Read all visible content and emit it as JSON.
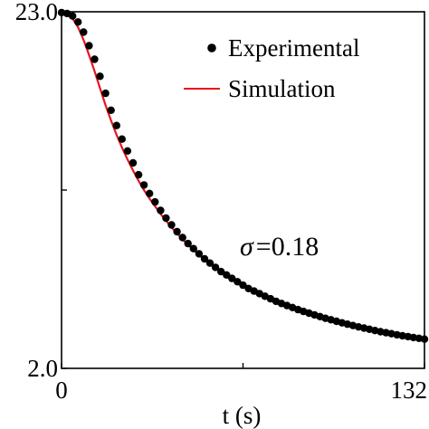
{
  "chart_data": {
    "type": "scatter",
    "title": "",
    "xlabel": "t (s)",
    "ylabel": "",
    "xlim": [
      0,
      132
    ],
    "ylim": [
      2.0,
      23.0
    ],
    "x_ticks": [
      {
        "value": 0,
        "label": "0"
      },
      {
        "value": 66,
        "label": ""
      },
      {
        "value": 132,
        "label": "132"
      }
    ],
    "y_ticks": [
      {
        "value": 2.0,
        "label": "2.0"
      },
      {
        "value": 12.5,
        "label": ""
      },
      {
        "value": 23.0,
        "label": "23.0"
      }
    ],
    "grid": false,
    "legend": {
      "position": "top-right",
      "entries": [
        {
          "label": "Experimental",
          "marker": "dot",
          "color": "#000000"
        },
        {
          "label": "Simulation",
          "marker": "line",
          "color": "#e8141c"
        }
      ]
    },
    "annotation": {
      "symbol": "σ",
      "text": "=0.18"
    },
    "series": [
      {
        "name": "Experimental",
        "kind": "points",
        "color": "#000000",
        "x": [
          0,
          2,
          4,
          6,
          8,
          10,
          12,
          14,
          16,
          18,
          20,
          22,
          24,
          26,
          28,
          30,
          32,
          34,
          36,
          38,
          40,
          42,
          44,
          46,
          48,
          50,
          52,
          54,
          56,
          58,
          60,
          62,
          64,
          66,
          68,
          70,
          72,
          74,
          76,
          78,
          80,
          82,
          84,
          86,
          88,
          90,
          92,
          94,
          96,
          98,
          100,
          102,
          104,
          106,
          108,
          110,
          112,
          114,
          116,
          118,
          120,
          122,
          124,
          126,
          128,
          130,
          132
        ],
        "y": [
          22.95,
          22.9,
          22.75,
          22.4,
          21.8,
          21.0,
          20.2,
          19.2,
          18.2,
          17.2,
          16.3,
          15.5,
          14.8,
          14.1,
          13.4,
          12.8,
          12.3,
          11.8,
          11.3,
          10.85,
          10.45,
          10.05,
          9.7,
          9.35,
          9.05,
          8.75,
          8.45,
          8.2,
          7.95,
          7.7,
          7.5,
          7.3,
          7.1,
          6.9,
          6.7,
          6.55,
          6.4,
          6.25,
          6.1,
          5.95,
          5.82,
          5.7,
          5.58,
          5.46,
          5.35,
          5.25,
          5.15,
          5.05,
          4.95,
          4.86,
          4.77,
          4.68,
          4.6,
          4.52,
          4.44,
          4.37,
          4.3,
          4.23,
          4.16,
          4.1,
          4.04,
          3.98,
          3.92,
          3.87,
          3.82,
          3.77,
          3.72
        ]
      },
      {
        "name": "Simulation",
        "kind": "line",
        "color": "#e8141c",
        "x": [
          0,
          2,
          4,
          6,
          8,
          10,
          12,
          14,
          16,
          18,
          20,
          22,
          24,
          26,
          28,
          30,
          32,
          34,
          36,
          38,
          40,
          42,
          44,
          46,
          48,
          50,
          52,
          54,
          56,
          58,
          60,
          62,
          64,
          66,
          68,
          70,
          72,
          74,
          76,
          78,
          80,
          82,
          84,
          86,
          88,
          90,
          92,
          94,
          96,
          98,
          100,
          102,
          104,
          106,
          108,
          110,
          112,
          114,
          116,
          118,
          120,
          122,
          124,
          126,
          128,
          130,
          132
        ],
        "y": [
          22.95,
          22.85,
          22.6,
          22.1,
          21.35,
          20.45,
          19.5,
          18.5,
          17.5,
          16.6,
          15.75,
          15.0,
          14.3,
          13.65,
          13.05,
          12.5,
          12.0,
          11.55,
          11.1,
          10.7,
          10.3,
          9.95,
          9.6,
          9.28,
          8.97,
          8.68,
          8.4,
          8.14,
          7.89,
          7.65,
          7.43,
          7.22,
          7.02,
          6.83,
          6.65,
          6.48,
          6.32,
          6.17,
          6.02,
          5.88,
          5.75,
          5.62,
          5.5,
          5.38,
          5.27,
          5.17,
          5.07,
          4.97,
          4.88,
          4.79,
          4.7,
          4.62,
          4.54,
          4.46,
          4.39,
          4.32,
          4.25,
          4.18,
          4.12,
          4.06,
          4.0,
          3.94,
          3.88,
          3.83,
          3.78,
          3.72,
          3.65
        ]
      }
    ]
  }
}
